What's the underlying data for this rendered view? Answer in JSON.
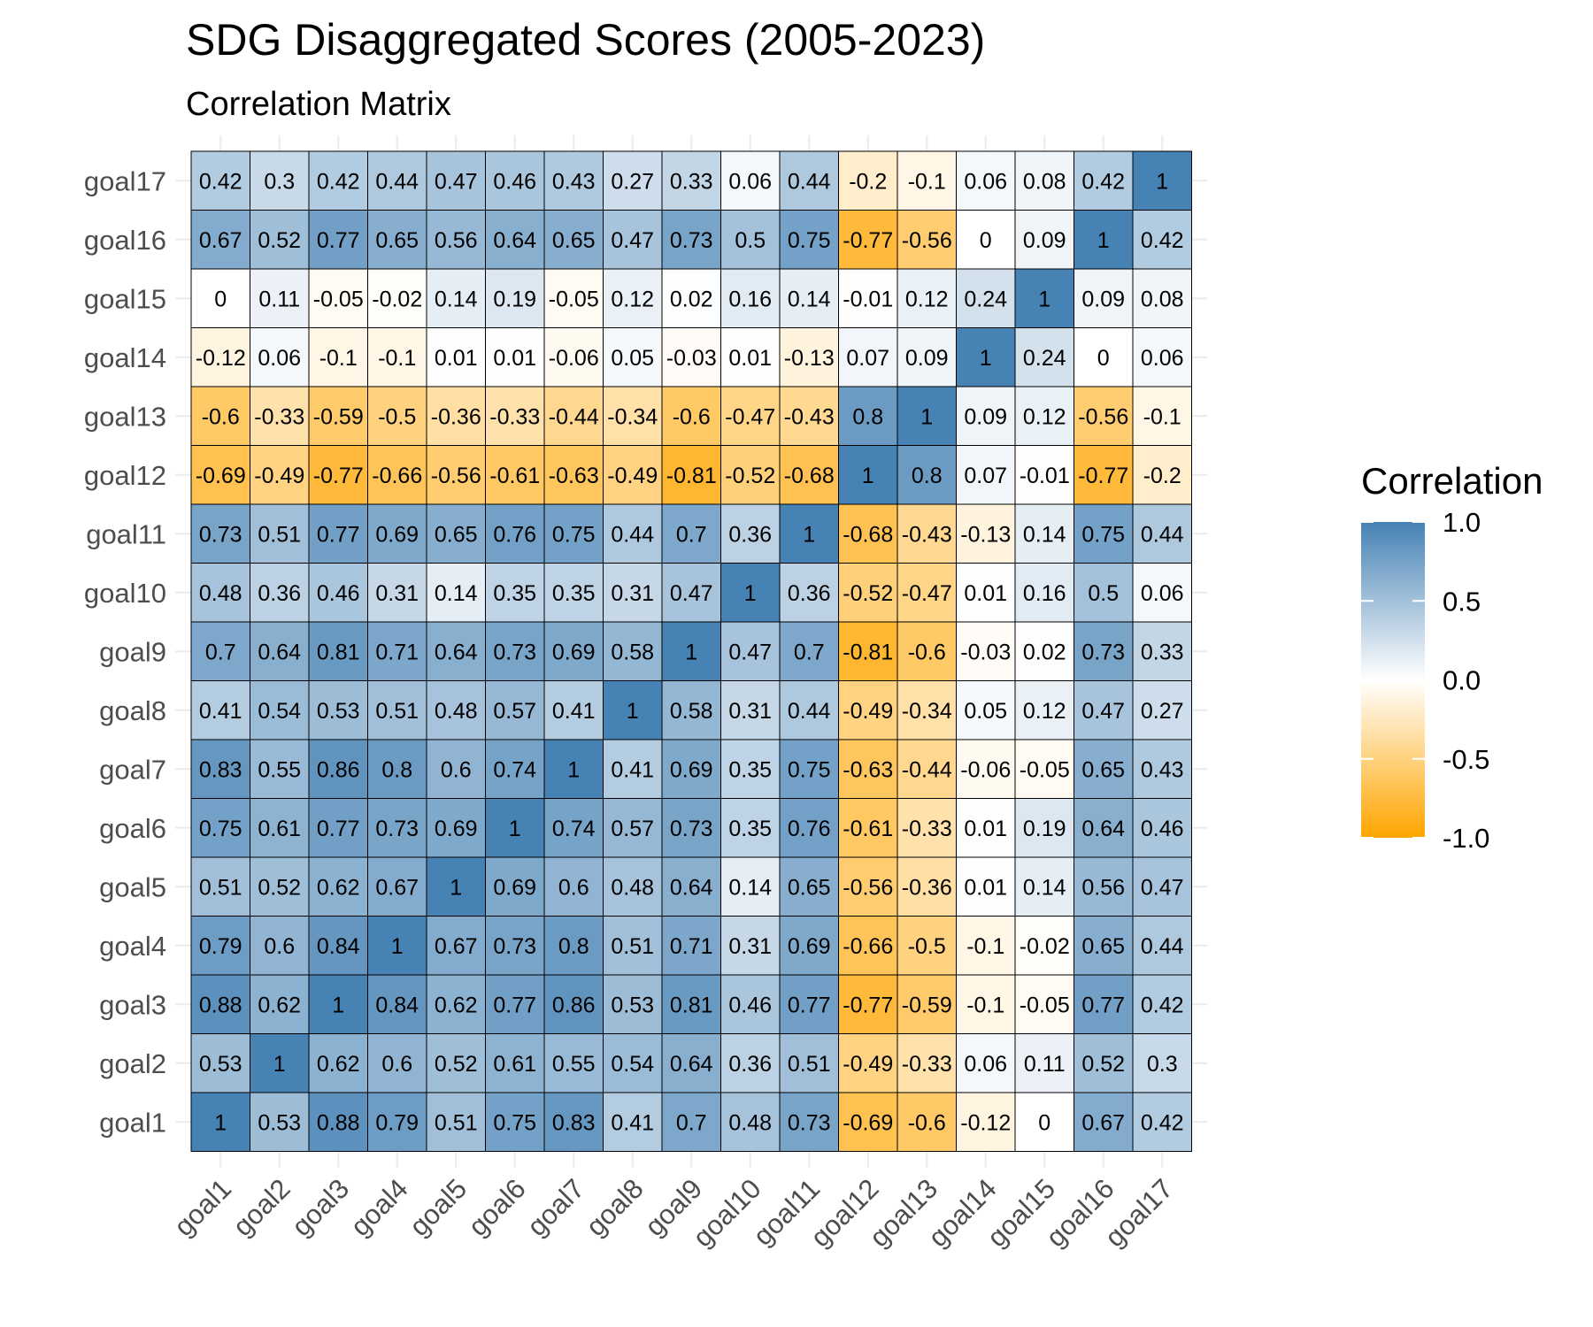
{
  "chart_data": {
    "type": "heatmap",
    "title": "SDG Disaggregated Scores (2005-2023)",
    "subtitle": "Correlation Matrix",
    "xlabel": "",
    "ylabel": "",
    "categories": [
      "goal1",
      "goal2",
      "goal3",
      "goal4",
      "goal5",
      "goal6",
      "goal7",
      "goal8",
      "goal9",
      "goal10",
      "goal11",
      "goal12",
      "goal13",
      "goal14",
      "goal15",
      "goal16",
      "goal17"
    ],
    "values": [
      [
        1,
        0.53,
        0.88,
        0.79,
        0.51,
        0.75,
        0.83,
        0.41,
        0.7,
        0.48,
        0.73,
        -0.69,
        -0.6,
        -0.12,
        0,
        0.67,
        0.42
      ],
      [
        0.53,
        1,
        0.62,
        0.6,
        0.52,
        0.61,
        0.55,
        0.54,
        0.64,
        0.36,
        0.51,
        -0.49,
        -0.33,
        0.06,
        0.11,
        0.52,
        0.3
      ],
      [
        0.88,
        0.62,
        1,
        0.84,
        0.62,
        0.77,
        0.86,
        0.53,
        0.81,
        0.46,
        0.77,
        -0.77,
        -0.59,
        -0.1,
        -0.05,
        0.77,
        0.42
      ],
      [
        0.79,
        0.6,
        0.84,
        1,
        0.67,
        0.73,
        0.8,
        0.51,
        0.71,
        0.31,
        0.69,
        -0.66,
        -0.5,
        -0.1,
        -0.02,
        0.65,
        0.44
      ],
      [
        0.51,
        0.52,
        0.62,
        0.67,
        1,
        0.69,
        0.6,
        0.48,
        0.64,
        0.14,
        0.65,
        -0.56,
        -0.36,
        0.01,
        0.14,
        0.56,
        0.47
      ],
      [
        0.75,
        0.61,
        0.77,
        0.73,
        0.69,
        1,
        0.74,
        0.57,
        0.73,
        0.35,
        0.76,
        -0.61,
        -0.33,
        0.01,
        0.19,
        0.64,
        0.46
      ],
      [
        0.83,
        0.55,
        0.86,
        0.8,
        0.6,
        0.74,
        1,
        0.41,
        0.69,
        0.35,
        0.75,
        -0.63,
        -0.44,
        -0.06,
        -0.05,
        0.65,
        0.43
      ],
      [
        0.41,
        0.54,
        0.53,
        0.51,
        0.48,
        0.57,
        0.41,
        1,
        0.58,
        0.31,
        0.44,
        -0.49,
        -0.34,
        0.05,
        0.12,
        0.47,
        0.27
      ],
      [
        0.7,
        0.64,
        0.81,
        0.71,
        0.64,
        0.73,
        0.69,
        0.58,
        1,
        0.47,
        0.7,
        -0.81,
        -0.6,
        -0.03,
        0.02,
        0.73,
        0.33
      ],
      [
        0.48,
        0.36,
        0.46,
        0.31,
        0.14,
        0.35,
        0.35,
        0.31,
        0.47,
        1,
        0.36,
        -0.52,
        -0.47,
        0.01,
        0.16,
        0.5,
        0.06
      ],
      [
        0.73,
        0.51,
        0.77,
        0.69,
        0.65,
        0.76,
        0.75,
        0.44,
        0.7,
        0.36,
        1,
        -0.68,
        -0.43,
        -0.13,
        0.14,
        0.75,
        0.44
      ],
      [
        -0.69,
        -0.49,
        -0.77,
        -0.66,
        -0.56,
        -0.61,
        -0.63,
        -0.49,
        -0.81,
        -0.52,
        -0.68,
        1,
        0.8,
        0.07,
        -0.01,
        -0.77,
        -0.2
      ],
      [
        -0.6,
        -0.33,
        -0.59,
        -0.5,
        -0.36,
        -0.33,
        -0.44,
        -0.34,
        -0.6,
        -0.47,
        -0.43,
        0.8,
        1,
        0.09,
        0.12,
        -0.56,
        -0.1
      ],
      [
        -0.12,
        0.06,
        -0.1,
        -0.1,
        0.01,
        0.01,
        -0.06,
        0.05,
        -0.03,
        0.01,
        -0.13,
        0.07,
        0.09,
        1,
        0.24,
        0,
        0.06
      ],
      [
        0,
        0.11,
        -0.05,
        -0.02,
        0.14,
        0.19,
        -0.05,
        0.12,
        0.02,
        0.16,
        0.14,
        -0.01,
        0.12,
        0.24,
        1,
        0.09,
        0.08
      ],
      [
        0.67,
        0.52,
        0.77,
        0.65,
        0.56,
        0.64,
        0.65,
        0.47,
        0.73,
        0.5,
        0.75,
        -0.77,
        -0.56,
        0,
        0.09,
        1,
        0.42
      ],
      [
        0.42,
        0.3,
        0.42,
        0.44,
        0.47,
        0.46,
        0.43,
        0.27,
        0.33,
        0.06,
        0.44,
        -0.2,
        -0.1,
        0.06,
        0.08,
        0.42,
        1
      ]
    ],
    "legend": {
      "title": "Correlation",
      "ticks": [
        "1.0",
        "0.5",
        "0.0",
        "-0.5",
        "-1.0"
      ],
      "tick_values": [
        1,
        0.5,
        0,
        -0.5,
        -1
      ],
      "range": [
        -1,
        1
      ],
      "placement": "right"
    },
    "colors": {
      "low": "#FFA500",
      "mid": "#FFFFFF",
      "high": "#4682B4"
    },
    "grid": true
  }
}
